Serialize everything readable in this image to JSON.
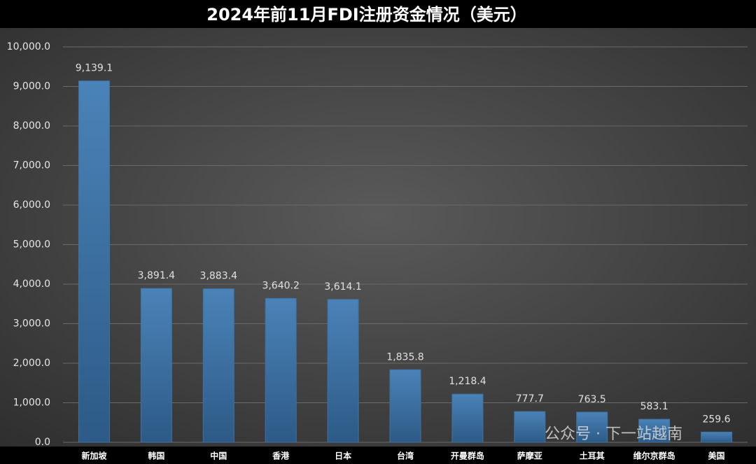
{
  "chart_data": {
    "type": "bar",
    "title": "2024年前11月FDI注册资金情况（美元）",
    "categories": [
      "新加坡",
      "韩国",
      "中国",
      "香港",
      "日本",
      "台湾",
      "开曼群岛",
      "萨摩亚",
      "土耳其",
      "维尔京群岛",
      "美国"
    ],
    "values": [
      9139.1,
      3891.4,
      3883.4,
      3640.2,
      3614.1,
      1835.8,
      1218.4,
      777.7,
      763.5,
      583.1,
      259.6
    ],
    "value_labels": [
      "9,139.1",
      "3,891.4",
      "3,883.4",
      "3,640.2",
      "3,614.1",
      "1,835.8",
      "1,218.4",
      "777.7",
      "763.5",
      "583.1",
      "259.6"
    ],
    "color": "#3d72a4",
    "ylim": [
      0,
      10000
    ],
    "yticks": [
      {
        "value": 0,
        "label": "0.0"
      },
      {
        "value": 1000,
        "label": "1,000.0"
      },
      {
        "value": 2000,
        "label": "2,000.0"
      },
      {
        "value": 3000,
        "label": "3,000.0"
      },
      {
        "value": 4000,
        "label": "4,000.0"
      },
      {
        "value": 5000,
        "label": "5,000.0"
      },
      {
        "value": 6000,
        "label": "6,000.0"
      },
      {
        "value": 7000,
        "label": "7,000.0"
      },
      {
        "value": 8000,
        "label": "8,000.0"
      },
      {
        "value": 9000,
        "label": "9,000.0"
      },
      {
        "value": 10000,
        "label": "10,000.0"
      }
    ],
    "grid": true,
    "annotation": "公众号 · 下一站越南"
  }
}
